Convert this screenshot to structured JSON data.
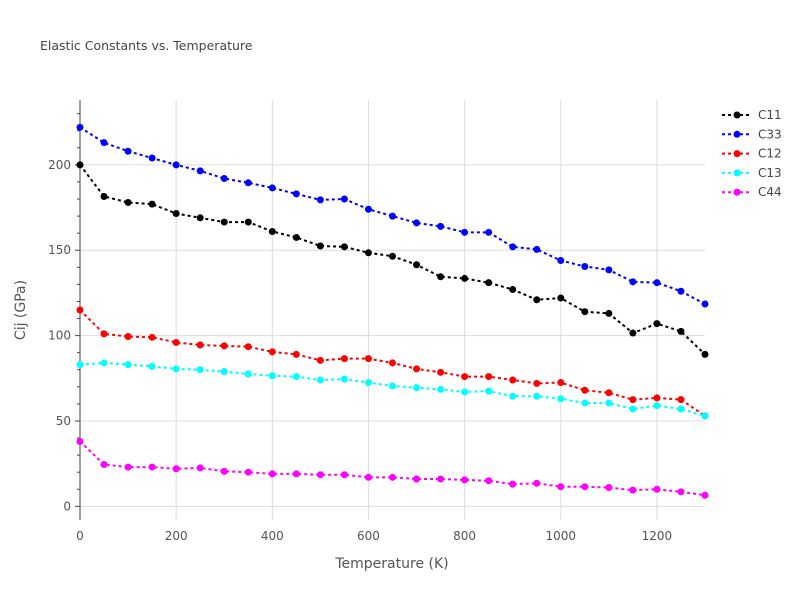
{
  "chart_data": {
    "type": "line",
    "title": "Elastic Constants vs. Temperature",
    "xlabel": "Temperature (K)",
    "ylabel": "Cij (GPa)",
    "xlim": [
      0,
      1300
    ],
    "ylim": [
      -8,
      238
    ],
    "xticks": [
      0,
      200,
      400,
      600,
      800,
      1000,
      1200
    ],
    "yticks": [
      0,
      50,
      100,
      150,
      200
    ],
    "grid": true,
    "legend_position": "top-right",
    "x": [
      0,
      50,
      100,
      150,
      200,
      250,
      300,
      350,
      400,
      450,
      500,
      550,
      600,
      650,
      700,
      750,
      800,
      850,
      900,
      950,
      1000,
      1050,
      1100,
      1150,
      1200,
      1250,
      1300
    ],
    "series": [
      {
        "name": "C11",
        "color": "#000000",
        "values": [
          200,
          181.5,
          178,
          177,
          171.5,
          169,
          166.5,
          166.5,
          161,
          157.5,
          152.5,
          152,
          148.5,
          146.5,
          141.5,
          134.5,
          133.5,
          131,
          127,
          121,
          122,
          114,
          113,
          101.5,
          107,
          102.5,
          89
        ]
      },
      {
        "name": "C33",
        "color": "#0000ff",
        "values": [
          222,
          213,
          208,
          204,
          200,
          196.5,
          192,
          189.5,
          186.5,
          183,
          179.5,
          180,
          174,
          170,
          166,
          164,
          160.5,
          160.5,
          152,
          150.5,
          144,
          140.5,
          138.5,
          131.5,
          131,
          126,
          118.5
        ]
      },
      {
        "name": "C12",
        "color": "#ff0000",
        "values": [
          115,
          101,
          99.5,
          99,
          96,
          94.5,
          94,
          93.5,
          90.5,
          89,
          85.5,
          86.5,
          86.5,
          84,
          80.5,
          78.5,
          76,
          76,
          74,
          72,
          72.5,
          68,
          66.5,
          62.5,
          63.5,
          62.5,
          53
        ]
      },
      {
        "name": "C13",
        "color": "#00ffff",
        "values": [
          83,
          84,
          83,
          82,
          80.5,
          80,
          79,
          77.5,
          76.5,
          76,
          74,
          74.5,
          72.5,
          70.5,
          69.5,
          68.5,
          67,
          67.5,
          64.5,
          64.5,
          63,
          60.5,
          60.5,
          57,
          59,
          57,
          53
        ]
      },
      {
        "name": "C44",
        "color": "#ff00ff",
        "values": [
          38,
          24.5,
          23,
          23,
          22,
          22.5,
          20.5,
          20,
          19,
          19,
          18.5,
          18.5,
          17,
          17,
          16,
          16,
          15.5,
          15,
          13,
          13.5,
          11.5,
          11.5,
          11,
          9.5,
          10,
          8.5,
          6.5
        ]
      }
    ]
  }
}
